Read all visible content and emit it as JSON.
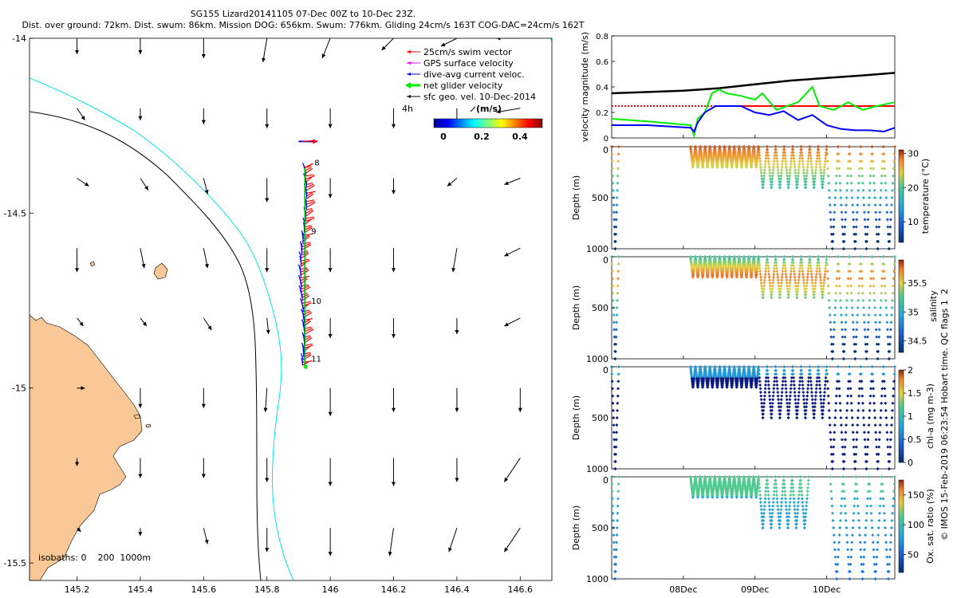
{
  "header": {
    "title": "SG155 Lizard20141105 07-Dec 00Z to 10-Dec 23Z.",
    "stats": "Dist. over ground: 72km. Dist. swum: 86km. Mission DOG: 656km. Swum: 776km. Gliding 24cm/s 163T COG-DAC=24cm/s 162T"
  },
  "side_note": "© IMOS 15-Feb-2019 06:23:54 Hobart time. QC flags 1  2",
  "chart_data": [
    {
      "type": "map",
      "xlim": [
        145.05,
        146.7
      ],
      "ylim": [
        -15.55,
        -14.0
      ],
      "x_ticks": [
        145.2,
        145.4,
        145.6,
        145.8,
        146,
        146.2,
        146.4,
        146.6
      ],
      "x_tick_labels": [
        "145.2",
        "145.4",
        "145.6",
        "145.8",
        "146",
        "146.2",
        "146.4",
        "146.6"
      ],
      "y_ticks": [
        -14,
        -14.5,
        -15,
        -15.5
      ],
      "y_tick_labels": [
        "-14",
        "-14.5",
        "-15",
        "-15.5"
      ],
      "legend": [
        {
          "label": "25cm/s swim vector",
          "color": "#ff0000"
        },
        {
          "label": "GPS surface velocity",
          "color": "#ff00ff"
        },
        {
          "label": "dive-avg current veloc.",
          "color": "#0000ff"
        },
        {
          "label": "net glider velocity",
          "color": "#00ee00"
        },
        {
          "label": "sfc geo. vel. 10-Dec-2014",
          "color": "#000000"
        }
      ],
      "ref_vector_label": "4h",
      "colorbar": {
        "label": "(m/s)",
        "ticks": [
          "0",
          "0.2",
          "0.4"
        ],
        "range": [
          0,
          0.5
        ]
      },
      "isobaths_label": "isobaths: 0    200  1000m",
      "isobath_colors": {
        "200m": "#00e5ee",
        "1000m": "#000000"
      },
      "land_color": "#f9c896",
      "day_labels": [
        {
          "day": "8",
          "lon": 145.95,
          "lat": -14.355
        },
        {
          "day": "9",
          "lon": 145.94,
          "lat": -14.55
        },
        {
          "day": "10",
          "lon": 145.94,
          "lat": -14.75
        },
        {
          "day": "11",
          "lon": 145.94,
          "lat": -14.915
        }
      ],
      "track": {
        "lon": 145.92,
        "lat_start": -14.37,
        "lat_end": -14.935,
        "offset_fix": {
          "lon_from": 145.9,
          "lon_to": 145.96,
          "lat": -14.295
        }
      },
      "sfc_vectors": {
        "lons": [
          145.2,
          145.4,
          145.6,
          145.8,
          146.0,
          146.2,
          146.4,
          146.6
        ],
        "lats": [
          -14.0,
          -14.2,
          -14.4,
          -14.6,
          -14.8,
          -15.0,
          -15.2,
          -15.4
        ],
        "u": [
          [
            0.0,
            0.0,
            0.0,
            -0.05,
            -0.1,
            -0.15,
            -0.2,
            -0.3
          ],
          [
            0.1,
            0.0,
            0.0,
            0.0,
            0.0,
            0.0,
            0.0,
            -0.3
          ],
          [
            0.15,
            0.1,
            0.05,
            0.0,
            0.0,
            0.0,
            -0.12,
            -0.2
          ],
          [
            0.0,
            0.05,
            0.05,
            0.0,
            0.0,
            0.0,
            -0.05,
            -0.2
          ],
          [
            0.08,
            0.08,
            0.1,
            0.02,
            0.0,
            0.0,
            0.0,
            -0.2
          ],
          [
            0.1,
            0.0,
            0.0,
            -0.02,
            0.0,
            0.0,
            0.0,
            0.0
          ],
          [
            0.0,
            0.0,
            0.0,
            0.0,
            0.0,
            0.0,
            0.0,
            -0.2
          ],
          [
            0.05,
            0.0,
            0.05,
            0.0,
            0.0,
            -0.05,
            -0.1,
            -0.2
          ]
        ],
        "v": [
          [
            -0.2,
            -0.2,
            -0.25,
            -0.3,
            -0.25,
            -0.15,
            -0.1,
            0.0
          ],
          [
            -0.15,
            -0.15,
            -0.2,
            -0.25,
            -0.25,
            -0.25,
            -0.2,
            -0.05
          ],
          [
            -0.1,
            -0.15,
            -0.2,
            -0.3,
            -0.25,
            -0.2,
            -0.1,
            -0.08
          ],
          [
            -0.3,
            -0.25,
            -0.25,
            -0.3,
            -0.3,
            -0.3,
            -0.3,
            -0.1
          ],
          [
            -0.1,
            -0.1,
            -0.15,
            -0.2,
            -0.25,
            -0.25,
            -0.2,
            -0.1
          ],
          [
            0.0,
            -0.25,
            -0.25,
            -0.3,
            -0.35,
            -0.3,
            -0.3,
            -0.3
          ],
          [
            -0.1,
            -0.25,
            -0.25,
            -0.3,
            -0.35,
            -0.35,
            -0.3,
            -0.3
          ],
          [
            -0.05,
            -0.1,
            -0.2,
            -0.3,
            -0.35,
            -0.35,
            -0.3,
            -0.3
          ]
        ]
      }
    },
    {
      "type": "line",
      "ylabel": "velocity magnitude (m/s)",
      "ylim": [
        0,
        0.8
      ],
      "y_ticks": [
        0,
        0.2,
        0.4,
        0.6,
        0.8
      ],
      "x_ticks": [
        "08Dec",
        "09Dec",
        "10Dec"
      ],
      "x_days": [
        1,
        2,
        3
      ],
      "xlim": [
        0,
        3.95
      ],
      "series": [
        {
          "color": "#000000",
          "x": [
            0,
            1.0,
            1.5,
            2.0,
            2.5,
            3.0,
            3.5,
            3.95
          ],
          "y": [
            0.35,
            0.37,
            0.39,
            0.42,
            0.45,
            0.47,
            0.49,
            0.51
          ]
        },
        {
          "color": "#ff0000",
          "dash": true,
          "x": [
            0,
            0.2,
            1.0,
            1.5
          ],
          "y": [
            0.25,
            0.25,
            0.25,
            0.25
          ]
        },
        {
          "color": "#ff0000",
          "x": [
            1.5,
            3.95
          ],
          "y": [
            0.25,
            0.25
          ]
        },
        {
          "color": "#00ee00",
          "x": [
            0,
            0.5,
            1.1,
            1.15,
            1.2,
            1.3,
            1.4,
            1.5,
            1.6,
            1.8,
            2.0,
            2.1,
            2.3,
            2.6,
            2.8,
            2.9,
            3.1,
            3.3,
            3.5,
            3.7,
            3.95
          ],
          "y": [
            0.15,
            0.13,
            0.1,
            0.02,
            0.15,
            0.2,
            0.35,
            0.38,
            0.35,
            0.33,
            0.3,
            0.35,
            0.22,
            0.28,
            0.4,
            0.25,
            0.22,
            0.28,
            0.22,
            0.25,
            0.28
          ]
        },
        {
          "color": "#0000ff",
          "x": [
            0,
            0.5,
            1.1,
            1.15,
            1.2,
            1.3,
            1.45,
            1.6,
            1.8,
            2.0,
            2.2,
            2.4,
            2.6,
            2.8,
            3.0,
            3.2,
            3.4,
            3.6,
            3.8,
            3.95
          ],
          "y": [
            0.1,
            0.1,
            0.08,
            0.05,
            0.12,
            0.2,
            0.25,
            0.25,
            0.25,
            0.2,
            0.18,
            0.21,
            0.14,
            0.18,
            0.1,
            0.07,
            0.06,
            0.06,
            0.05,
            0.08
          ]
        }
      ]
    },
    {
      "type": "scatter",
      "name": "temperature",
      "ylabel": "Depth (m)",
      "cbar_label": "temperature (°C)",
      "cbar_ticks": [
        10,
        20,
        30
      ],
      "cbar_range": [
        4,
        31
      ],
      "ylim": [
        1000,
        0
      ],
      "y_ticks": [
        0,
        500,
        1000
      ],
      "segments": [
        {
          "t0": 0,
          "t1": 0.1,
          "dmax": 1000,
          "n": 1
        },
        {
          "t0": 1.1,
          "t1": 2.05,
          "dmax": 200,
          "n": 14
        },
        {
          "t0": 2.05,
          "t1": 3.0,
          "dmax": 400,
          "n": 8
        },
        {
          "t0": 3.0,
          "t1": 3.95,
          "dmax": 1000,
          "n": 6
        }
      ]
    },
    {
      "type": "scatter",
      "name": "salinity",
      "ylabel": "Depth (m)",
      "cbar_label": "salinity",
      "cbar_ticks": [
        34.5,
        35,
        35.5
      ],
      "cbar_range": [
        34.3,
        35.9
      ],
      "ylim": [
        1000,
        0
      ],
      "y_ticks": [
        0,
        500,
        1000
      ],
      "segments": [
        {
          "t0": 0,
          "t1": 0.1,
          "dmax": 1000,
          "n": 1
        },
        {
          "t0": 1.1,
          "t1": 2.05,
          "dmax": 200,
          "n": 14
        },
        {
          "t0": 2.05,
          "t1": 3.0,
          "dmax": 400,
          "n": 8
        },
        {
          "t0": 3.0,
          "t1": 3.95,
          "dmax": 1000,
          "n": 6
        }
      ]
    },
    {
      "type": "scatter",
      "name": "chl-a",
      "ylabel": "Depth (m)",
      "cbar_label": "chl-a (mg m-3)",
      "cbar_ticks": [
        0,
        0.5,
        1,
        1.5,
        2
      ],
      "cbar_range": [
        0,
        2
      ],
      "ylim": [
        1000,
        0
      ],
      "y_ticks": [
        0,
        500,
        1000
      ],
      "segments": [
        {
          "t0": 0,
          "t1": 0.1,
          "dmax": 1000,
          "n": 1
        },
        {
          "t0": 1.1,
          "t1": 2.05,
          "dmax": 200,
          "n": 14
        },
        {
          "t0": 2.05,
          "t1": 3.0,
          "dmax": 500,
          "n": 8
        },
        {
          "t0": 3.0,
          "t1": 3.95,
          "dmax": 1000,
          "n": 6
        }
      ]
    },
    {
      "type": "scatter",
      "name": "oxygen",
      "ylabel": "Depth (m)",
      "cbar_label": "Ox. sat. ratio (%)",
      "cbar_ticks": [
        50,
        100,
        150
      ],
      "cbar_range": [
        20,
        175
      ],
      "ylim": [
        1000,
        0
      ],
      "y_ticks": [
        0,
        500,
        1000
      ],
      "segments": [
        {
          "t0": 0,
          "t1": 0.1,
          "dmax": 1000,
          "n": 1
        },
        {
          "t0": 1.1,
          "t1": 2.05,
          "dmax": 200,
          "n": 14
        },
        {
          "t0": 2.05,
          "t1": 2.75,
          "dmax": 500,
          "n": 6
        },
        {
          "t0": 3.05,
          "t1": 3.95,
          "dmax": 1000,
          "n": 5
        }
      ]
    }
  ]
}
